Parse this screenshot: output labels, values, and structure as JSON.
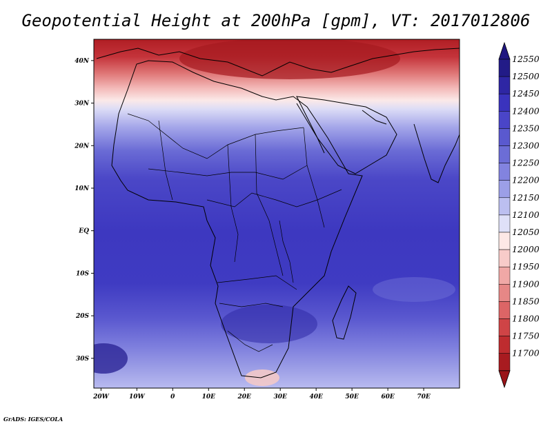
{
  "title": "Geopotential Height at 200hPa [gpm], VT: 2017012806",
  "credit": "GrADS: IGES/COLA",
  "map": {
    "lon_range": [
      -22,
      80
    ],
    "lat_range": [
      -37,
      45
    ],
    "lon_ticks": [
      {
        "lon": -20,
        "label": "20W"
      },
      {
        "lon": -10,
        "label": "10W"
      },
      {
        "lon": 0,
        "label": "0"
      },
      {
        "lon": 10,
        "label": "10E"
      },
      {
        "lon": 20,
        "label": "20E"
      },
      {
        "lon": 30,
        "label": "30E"
      },
      {
        "lon": 40,
        "label": "40E"
      },
      {
        "lon": 50,
        "label": "50E"
      },
      {
        "lon": 60,
        "label": "60E"
      },
      {
        "lon": 70,
        "label": "70E"
      }
    ],
    "lat_ticks": [
      {
        "lat": 40,
        "label": "40N"
      },
      {
        "lat": 30,
        "label": "30N"
      },
      {
        "lat": 20,
        "label": "20N"
      },
      {
        "lat": 10,
        "label": "10N"
      },
      {
        "lat": 0,
        "label": "EQ"
      },
      {
        "lat": -10,
        "label": "10S"
      },
      {
        "lat": -20,
        "label": "20S"
      },
      {
        "lat": -30,
        "label": "30S"
      }
    ]
  },
  "colorbar": {
    "levels": [
      "12550",
      "12500",
      "12450",
      "12400",
      "12350",
      "12300",
      "12250",
      "12200",
      "12150",
      "12100",
      "12050",
      "12000",
      "11950",
      "11900",
      "11850",
      "11800",
      "11750",
      "11700"
    ],
    "colors": [
      "#221b87",
      "#2e26a4",
      "#3a33bd",
      "#4a45c8",
      "#5a59cf",
      "#6c6dd6",
      "#8283df",
      "#9c9fe7",
      "#bcbff0",
      "#dfe0f8",
      "#fde8e6",
      "#f8cbc9",
      "#f0a8a6",
      "#e68786",
      "#dc6566",
      "#cf4446",
      "#be2c2f",
      "#a81b20"
    ],
    "top_color": "#1f1680",
    "bottom_color": "#9a1418"
  }
}
